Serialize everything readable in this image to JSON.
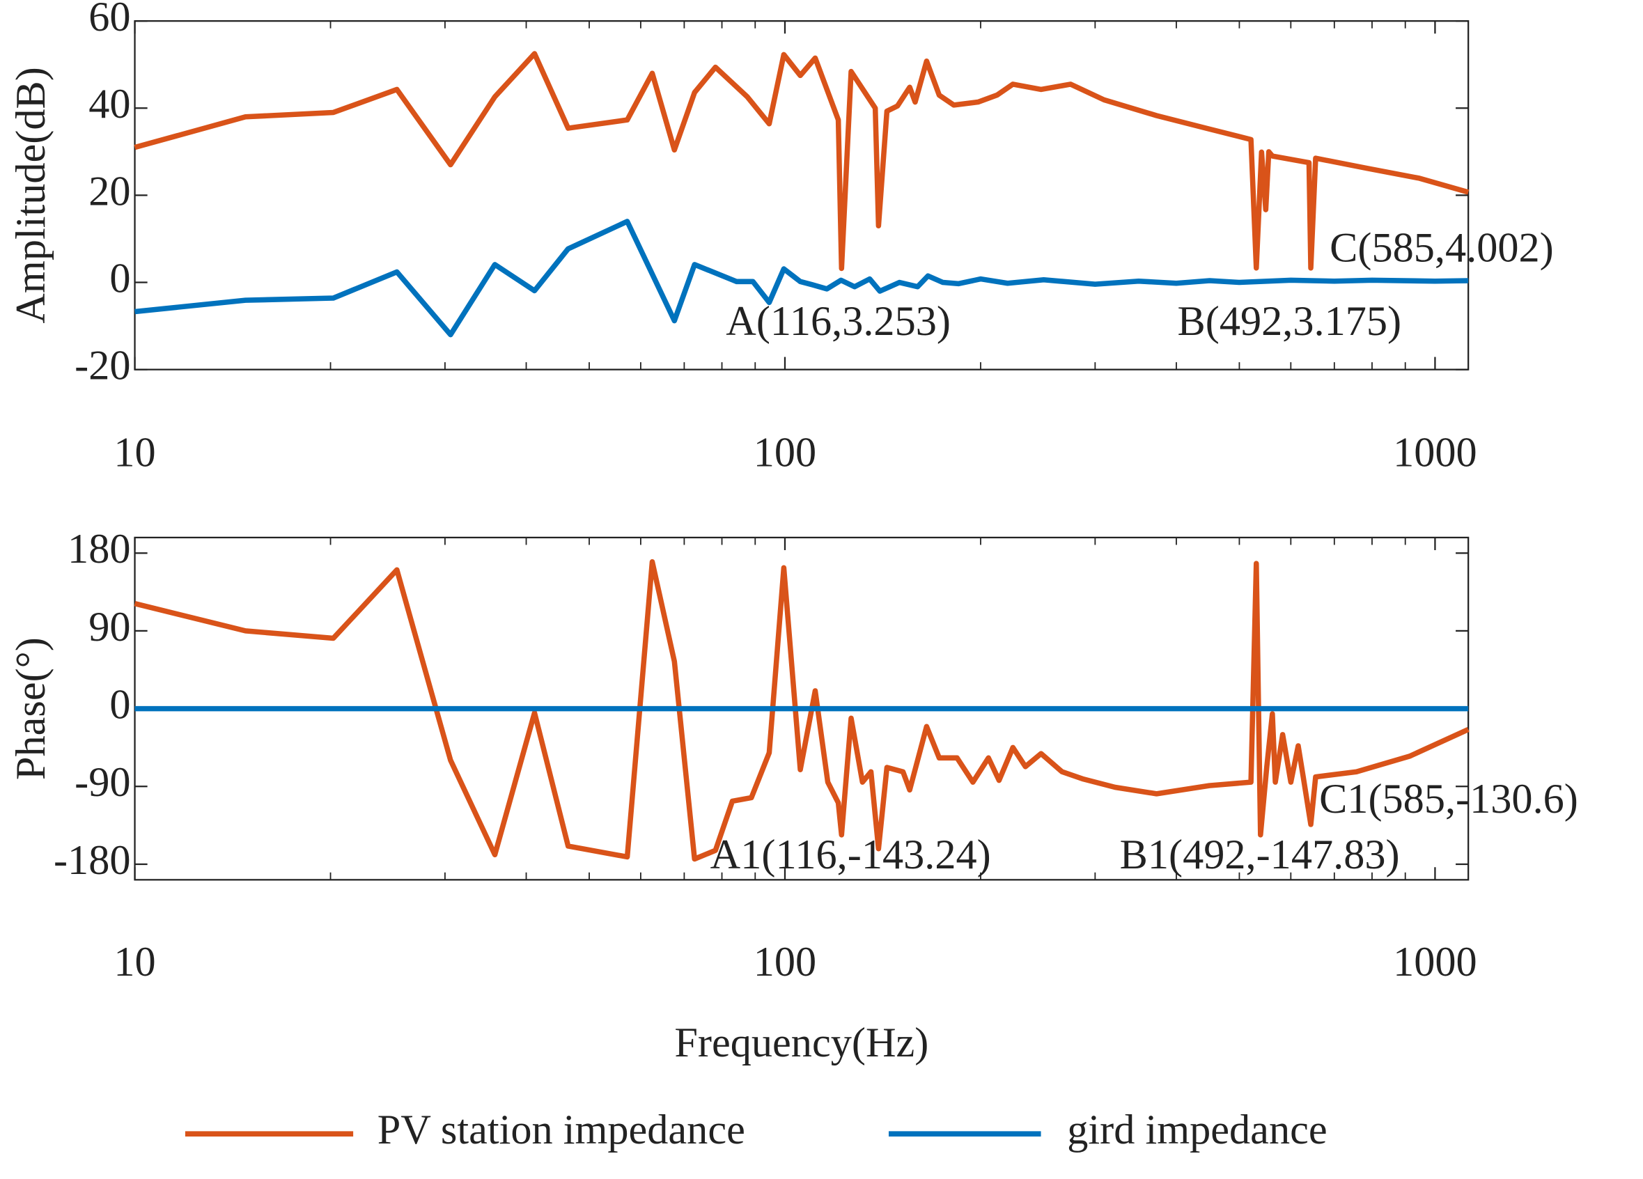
{
  "chart_data": [
    {
      "type": "line",
      "ylabel": "Amplitude(dB)",
      "log_x": true,
      "xlim": [
        10,
        1125
      ],
      "xticks": [
        10,
        100,
        1000
      ],
      "ylim": [
        -20,
        60
      ],
      "yticks": [
        -20,
        0,
        20,
        40,
        60
      ],
      "series": [
        {
          "name": "PV station impedance",
          "color": "#d95319",
          "x": [
            10,
            14.8,
            20.2,
            25.3,
            30.6,
            35.8,
            41.2,
            46.4,
            57.2,
            62.5,
            67.6,
            72.6,
            78.2,
            87.5,
            94.6,
            99.6,
            105.6,
            111.3,
            120.8,
            122.2,
            126.4,
            137.7,
            139.3,
            143.5,
            149,
            155.6,
            158.6,
            165.2,
            172.7,
            181.9,
            198.2,
            211.9,
            224.2,
            247.7,
            275,
            309.7,
            373,
            449.5,
            521,
            531,
            541,
            549,
            555,
            562,
            640,
            644,
            655,
            786,
            946,
            1125
          ],
          "values": [
            31,
            38,
            39,
            44.3,
            27,
            42.6,
            52.5,
            35.4,
            37.3,
            48,
            30.4,
            43.6,
            49.4,
            42.6,
            36.4,
            52.3,
            47.5,
            51.5,
            37.3,
            3.2,
            48.4,
            40,
            13,
            39.3,
            40.5,
            44.8,
            41.4,
            50.8,
            43,
            40.7,
            41.4,
            43,
            45.5,
            44.3,
            45.5,
            41.9,
            38.3,
            35.2,
            32.8,
            3.3,
            29.9,
            16.7,
            30,
            29,
            27.5,
            3.3,
            28.5,
            26.2,
            23.9,
            20.7
          ]
        },
        {
          "name": "gird impedance",
          "color": "#0072bd",
          "x": [
            10,
            14.8,
            20.2,
            25.3,
            30.6,
            35.8,
            41.2,
            46.4,
            57.2,
            67.6,
            72.6,
            84.3,
            89.3,
            94.6,
            99.6,
            105.6,
            110,
            116,
            122,
            128,
            135,
            140,
            150,
            160,
            166,
            175,
            185,
            200,
            220,
            250,
            300,
            350,
            400,
            450,
            500,
            600,
            700,
            800,
            1000,
            1125
          ],
          "values": [
            -6.7,
            -4.1,
            -3.6,
            2.4,
            -12,
            4.1,
            -1.9,
            7.7,
            14,
            -8.8,
            4.1,
            0.2,
            0.2,
            -4.6,
            3.1,
            0.2,
            -0.5,
            -1.5,
            0.5,
            -1,
            0.8,
            -2,
            0,
            -1,
            1.5,
            0,
            -0.3,
            0.8,
            -0.2,
            0.6,
            -0.4,
            0.3,
            -0.2,
            0.4,
            0,
            0.5,
            0.3,
            0.5,
            0.3,
            0.4
          ]
        }
      ],
      "annotations": [
        "A(116,3.253)",
        "B(492,3.175)",
        "C(585,4.002)"
      ]
    },
    {
      "type": "line",
      "ylabel": "Phase(°)",
      "xlabel": "Frequency(Hz)",
      "log_x": true,
      "xlim": [
        10,
        1125
      ],
      "xticks": [
        10,
        100,
        1000
      ],
      "ylim": [
        -198,
        198
      ],
      "yticks": [
        -180,
        -90,
        0,
        90,
        180
      ],
      "series": [
        {
          "color": "#d95319",
          "x": [
            10,
            14.8,
            20.2,
            25.3,
            30.6,
            35.8,
            41.2,
            46.4,
            57.2,
            62.5,
            67.6,
            72.6,
            78.2,
            83,
            88.8,
            94.6,
            99.6,
            105.6,
            111.3,
            116.4,
            120.8,
            122.2,
            126.4,
            131.6,
            135.6,
            139.3,
            143.5,
            151.9,
            155.6,
            165.2,
            172.7,
            184,
            194.6,
            205.6,
            213.5,
            224.2,
            234.4,
            247.7,
            266.9,
            287.9,
            322,
            373,
            449.5,
            521,
            531,
            539,
            551,
            562,
            568,
            583,
            600,
            616,
            627,
            644,
            655,
            757,
            914,
            1125
          ],
          "values": [
            121.6,
            90,
            81.5,
            160.6,
            -59.6,
            -169,
            -4.9,
            -159,
            -171.5,
            170,
            54.7,
            -174,
            -164,
            -107,
            -103,
            -51,
            163,
            -70.6,
            20.7,
            -85,
            -109,
            -146,
            -11,
            -85,
            -73,
            -162,
            -68,
            -73,
            -94,
            -20.7,
            -57,
            -57,
            -85,
            -57,
            -83,
            -45,
            -67,
            -52,
            -73,
            -81.5,
            -91,
            -98.5,
            -89,
            -85,
            168,
            -146,
            -67,
            -6,
            -85,
            -30,
            -85,
            -43,
            -79,
            -134,
            -79,
            -73,
            -55,
            -24
          ]
        },
        {
          "color": "#0072bd",
          "x": [
            10,
            1125
          ],
          "values": [
            0,
            0
          ]
        }
      ],
      "annotations": [
        "A1(116,-143.24)",
        "B1(492,-147.83)",
        "C1(585,-130.6)"
      ]
    }
  ]
}
